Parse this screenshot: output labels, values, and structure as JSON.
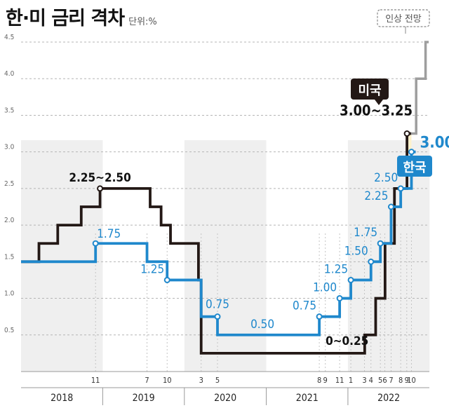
{
  "title": "한·미 금리 격차",
  "unit": "단위:%",
  "chart_data": {
    "type": "line",
    "title": "한·미 금리 격차",
    "unit": "단위:%",
    "step": true,
    "ylim": [
      0,
      4.5
    ],
    "y_ticks": [
      "0.5",
      "1.0",
      "1.5",
      "2.0",
      "2.5",
      "3.0",
      "3.5",
      "4.0",
      "4.5"
    ],
    "x_month_ticks": [
      {
        "label": "11",
        "date": "2018-11-30"
      },
      {
        "label": "7",
        "date": "2019-07-18"
      },
      {
        "label": "10",
        "date": "2019-10-16"
      },
      {
        "label": "3",
        "date": "2020-03-16"
      },
      {
        "label": "5",
        "date": "2020-05-28"
      },
      {
        "label": "8",
        "date": "2021-08-26"
      },
      {
        "label": "9",
        "date": "2021-09-22"
      },
      {
        "label": "11",
        "date": "2021-11-25"
      },
      {
        "label": "1",
        "date": "2022-01-14"
      },
      {
        "label": "3",
        "date": "2022-03-16"
      },
      {
        "label": "4",
        "date": "2022-04-14"
      },
      {
        "label": "5",
        "date": "2022-05-26"
      },
      {
        "label": "6",
        "date": "2022-06-15"
      },
      {
        "label": "7",
        "date": "2022-07-13"
      },
      {
        "label": "8",
        "date": "2022-08-25"
      },
      {
        "label": "9",
        "date": "2022-09-21"
      },
      {
        "label": "10",
        "date": "2022-10-12"
      }
    ],
    "years": [
      {
        "label": "2018",
        "start": "2018-01-01",
        "end": "2019-01-01"
      },
      {
        "label": "2019",
        "start": "2019-01-01",
        "end": "2020-01-01"
      },
      {
        "label": "2020",
        "start": "2020-01-01",
        "end": "2021-01-01"
      },
      {
        "label": "2021",
        "start": "2021-01-01",
        "end": "2022-01-01"
      },
      {
        "label": "2022",
        "start": "2022-01-01",
        "end": "2023-01-01"
      }
    ],
    "series": [
      {
        "name": "미국",
        "color": "#231815",
        "points": [
          [
            "2018-01-01",
            1.5
          ],
          [
            "2018-03-22",
            1.75
          ],
          [
            "2018-06-14",
            2.0
          ],
          [
            "2018-09-27",
            2.25
          ],
          [
            "2018-12-20",
            2.5
          ],
          [
            "2019-08-01",
            2.25
          ],
          [
            "2019-09-19",
            2.0
          ],
          [
            "2019-10-31",
            1.75
          ],
          [
            "2020-03-04",
            1.25
          ],
          [
            "2020-03-16",
            0.25
          ],
          [
            "2022-03-17",
            0.5
          ],
          [
            "2022-05-05",
            1.0
          ],
          [
            "2022-06-16",
            1.75
          ],
          [
            "2022-07-28",
            2.5
          ],
          [
            "2022-09-22",
            3.25
          ],
          [
            "2022-10-10",
            3.25
          ]
        ]
      },
      {
        "name": "한국",
        "color": "#1f88cc",
        "points": [
          [
            "2018-01-01",
            1.5
          ],
          [
            "2018-11-30",
            1.75
          ],
          [
            "2019-07-18",
            1.5
          ],
          [
            "2019-10-16",
            1.25
          ],
          [
            "2020-03-16",
            0.75
          ],
          [
            "2020-05-28",
            0.5
          ],
          [
            "2021-08-26",
            0.75
          ],
          [
            "2021-11-25",
            1.0
          ],
          [
            "2022-01-14",
            1.25
          ],
          [
            "2022-04-14",
            1.5
          ],
          [
            "2022-05-26",
            1.75
          ],
          [
            "2022-07-13",
            2.25
          ],
          [
            "2022-08-25",
            2.5
          ],
          [
            "2022-10-12",
            3.0
          ],
          [
            "2022-10-31",
            3.0
          ]
        ]
      },
      {
        "name": "인상 전망",
        "color": "#9e9e9e",
        "points": [
          [
            "2022-10-05",
            3.25
          ],
          [
            "2022-11-02",
            4.0
          ],
          [
            "2022-12-14",
            4.5
          ],
          [
            "2022-12-28",
            4.5
          ]
        ]
      }
    ],
    "annotations": [
      {
        "series": 0,
        "text": "2.25~2.50",
        "date": "2018-12-20",
        "value": 2.5
      },
      {
        "series": 0,
        "text": "0~0.25",
        "date": "2022-02-10",
        "value": 0.25
      },
      {
        "series": 0,
        "text": "3.00~3.25",
        "date": "2022-09-22",
        "value": 3.25
      },
      {
        "series": 1,
        "text": "1.75",
        "date": "2018-11-30",
        "value": 1.75
      },
      {
        "series": 1,
        "text": "1.25",
        "date": "2019-10-16",
        "value": 1.25
      },
      {
        "series": 1,
        "text": "0.75",
        "date": "2020-05-28",
        "value": 0.75
      },
      {
        "series": 1,
        "text": "0.50",
        "date": "2020-12-15",
        "value": 0.5
      },
      {
        "series": 1,
        "text": "0.75",
        "date": "2021-08-26",
        "value": 0.75
      },
      {
        "series": 1,
        "text": "1.00",
        "date": "2021-11-25",
        "value": 1.0
      },
      {
        "series": 1,
        "text": "1.25",
        "date": "2022-01-14",
        "value": 1.25
      },
      {
        "series": 1,
        "text": "1.50",
        "date": "2022-04-14",
        "value": 1.5
      },
      {
        "series": 1,
        "text": "1.75",
        "date": "2022-05-26",
        "value": 1.75
      },
      {
        "series": 1,
        "text": "2.25",
        "date": "2022-07-13",
        "value": 2.25
      },
      {
        "series": 1,
        "text": "2.50",
        "date": "2022-08-25",
        "value": 2.5
      },
      {
        "series": 1,
        "text": "3.00",
        "date": "2022-10-12",
        "value": 3.0
      }
    ],
    "callouts": {
      "us": "미국",
      "kr": "한국",
      "forecast": "인상 전망"
    },
    "gap_shading": {
      "from": 3.0,
      "to": 3.25,
      "color": "#fdf1cc"
    },
    "background_band_color": "#ebebeb",
    "grid": "dashed"
  }
}
